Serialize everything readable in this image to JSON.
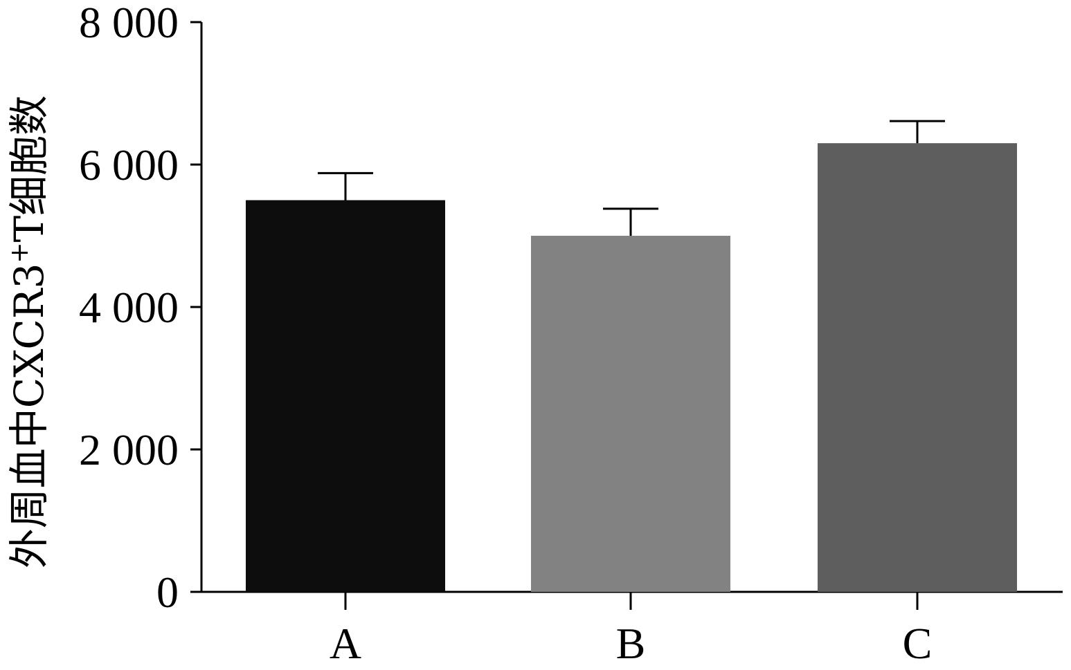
{
  "chart_data": {
    "type": "bar",
    "categories": [
      "A",
      "B",
      "C"
    ],
    "values": [
      5500,
      5000,
      6300
    ],
    "errors": [
      380,
      380,
      310
    ],
    "colors": [
      "#0d0d0d",
      "#828282",
      "#5e5e5e"
    ],
    "ylabel_main": "外周血中CXCR3",
    "ylabel_sup": "+",
    "ylabel_tail": "T细胞数",
    "ylim": [
      0,
      8000
    ],
    "yticks": [
      0,
      2000,
      4000,
      6000,
      8000
    ],
    "ytick_labels": [
      "0",
      "2 000",
      "4 000",
      "6 000",
      "8 000"
    ],
    "grid": false,
    "legend": "none"
  }
}
